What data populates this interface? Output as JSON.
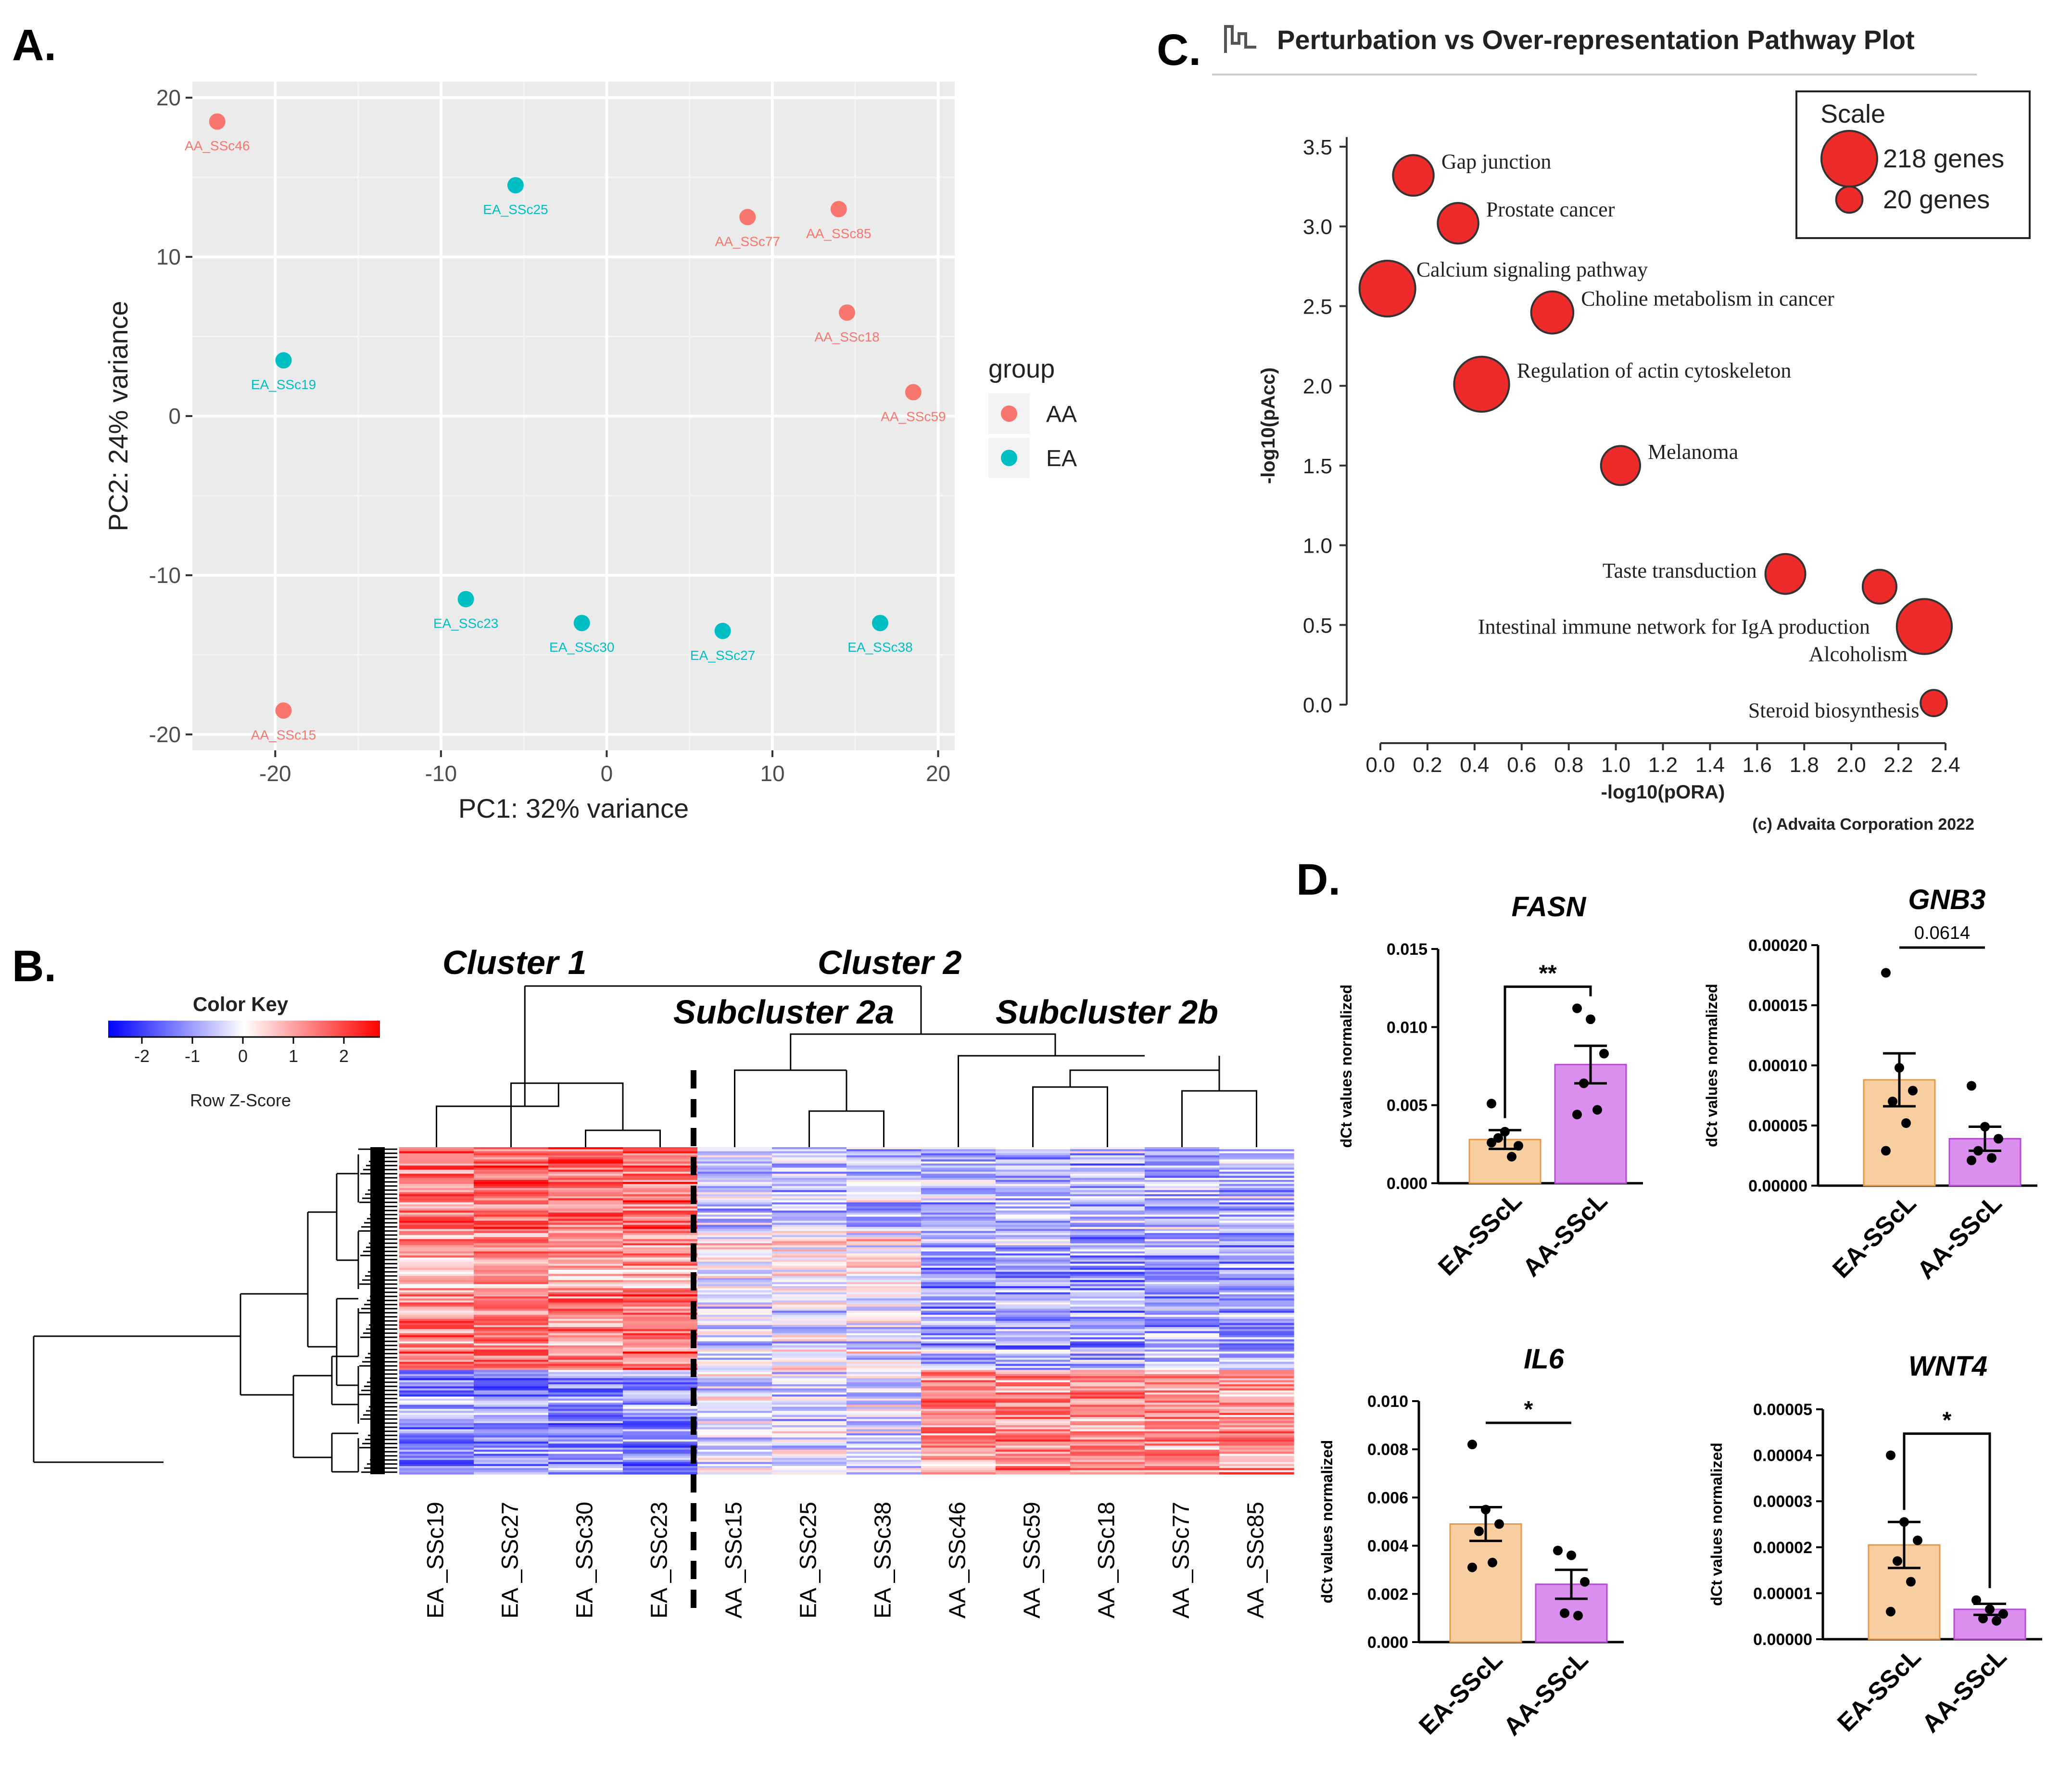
{
  "panels": {
    "a": {
      "label": "A.",
      "chart_data": {
        "type": "scatter",
        "xlabel": "PC1: 32% variance",
        "ylabel": "PC2: 24% variance",
        "xlim": [
          -25,
          21
        ],
        "ylim": [
          -21,
          21
        ],
        "xticks": [
          -20,
          -10,
          0,
          10,
          20
        ],
        "xtick_labels": [
          "-20",
          "-10",
          "0",
          "10",
          "20"
        ],
        "yticks": [
          -20,
          -10,
          0,
          10,
          20
        ],
        "ytick_labels": [
          "-20",
          "-10",
          "0",
          "10",
          "20"
        ],
        "legend_title": "group",
        "groups": [
          {
            "name": "AA",
            "color": "#F8766D"
          },
          {
            "name": "EA",
            "color": "#00BFC4"
          }
        ],
        "points": [
          {
            "label": "AA_SSc46",
            "group": "AA",
            "x": -23.5,
            "y": 18.5
          },
          {
            "label": "EA_SSc25",
            "group": "EA",
            "x": -5.5,
            "y": 14.5
          },
          {
            "label": "AA_SSc77",
            "group": "AA",
            "x": 8.5,
            "y": 12.5
          },
          {
            "label": "AA_SSc85",
            "group": "AA",
            "x": 14,
            "y": 13
          },
          {
            "label": "AA_SSc18",
            "group": "AA",
            "x": 14.5,
            "y": 6.5
          },
          {
            "label": "EA_SSc19",
            "group": "EA",
            "x": -19.5,
            "y": 3.5
          },
          {
            "label": "AA_SSc59",
            "group": "AA",
            "x": 18.5,
            "y": 1.5
          },
          {
            "label": "EA_SSc23",
            "group": "EA",
            "x": -8.5,
            "y": -11.5
          },
          {
            "label": "EA_SSc30",
            "group": "EA",
            "x": -1.5,
            "y": -13
          },
          {
            "label": "EA_SSc27",
            "group": "EA",
            "x": 7,
            "y": -13.5
          },
          {
            "label": "EA_SSc38",
            "group": "EA",
            "x": 16.5,
            "y": -13
          },
          {
            "label": "AA_SSc15",
            "group": "AA",
            "x": -19.5,
            "y": -18.5
          }
        ]
      }
    },
    "b": {
      "label": "B.",
      "chart_data": {
        "type": "heatmap",
        "color_key_title": "Color Key",
        "color_key_xlabel": "Row Z-Score",
        "color_key_ticks": [
          "-2",
          "-1",
          "0",
          "1",
          "2"
        ],
        "colors": {
          "low": "#0000FF",
          "mid": "#FFFFFF",
          "high": "#FF0000"
        },
        "cluster_labels": [
          "Cluster 1",
          "Cluster 2",
          "Subcluster 2a",
          "Subcluster 2b"
        ],
        "columns": [
          "EA _SSc19",
          "EA _SSc27",
          "EA _SSc30",
          "EA _SSc23",
          "AA _SSc15",
          "EA _SSc25",
          "EA _SSc38",
          "AA _SSc46",
          "AA _SSc59",
          "AA _SSc18",
          "AA _SSc77",
          "AA _SSc85"
        ]
      }
    },
    "c": {
      "label": "C.",
      "chart_data": {
        "type": "scatter",
        "title": "Perturbation vs Over-representation Pathway Plot",
        "xlabel": "-log10(pORA)",
        "ylabel": "-log10(pAcc)",
        "xlim": [
          0,
          2.4
        ],
        "ylim": [
          0,
          3.5
        ],
        "xtick_labels": [
          "0.0",
          "0.2",
          "0.4",
          "0.6",
          "0.8",
          "1.0",
          "1.2",
          "1.4",
          "1.6",
          "1.8",
          "2.0",
          "2.2",
          "2.4"
        ],
        "ytick_labels": [
          "0.0",
          "0.5",
          "1.0",
          "1.5",
          "2.0",
          "2.5",
          "3.0",
          "3.5"
        ],
        "point_color": "#EE2B2B",
        "scale_title": "Scale",
        "scale_entries": [
          {
            "label": "218 genes",
            "genes": 218
          },
          {
            "label": "20 genes",
            "genes": 20
          }
        ],
        "copyright": "(c) Advaita Corporation 2022",
        "points": [
          {
            "name": "Gap junction",
            "x": 0.14,
            "y": 3.32,
            "genes": 90,
            "label_side": "right"
          },
          {
            "name": "Prostate cancer",
            "x": 0.33,
            "y": 3.02,
            "genes": 90,
            "label_side": "right"
          },
          {
            "name": "Calcium signaling pathway",
            "x": 0.03,
            "y": 2.61,
            "genes": 218,
            "label_side": "right"
          },
          {
            "name": "Choline metabolism in cancer",
            "x": 0.73,
            "y": 2.46,
            "genes": 100,
            "label_side": "right"
          },
          {
            "name": "Regulation of actin cytoskeleton",
            "x": 0.43,
            "y": 2.01,
            "genes": 210,
            "label_side": "right"
          },
          {
            "name": "Melanoma",
            "x": 1.02,
            "y": 1.5,
            "genes": 80,
            "label_side": "right"
          },
          {
            "name": "Taste transduction",
            "x": 1.72,
            "y": 0.82,
            "genes": 85,
            "label_side": "left"
          },
          {
            "name": "Intestinal immune network for IgA production",
            "x": 2.12,
            "y": 0.74,
            "genes": 50,
            "label_side": "below-left"
          },
          {
            "name": "Alcoholism",
            "x": 2.31,
            "y": 0.49,
            "genes": 210,
            "label_side": "below-left"
          },
          {
            "name": "Steroid biosynthesis",
            "x": 2.35,
            "y": 0.01,
            "genes": 20,
            "label_side": "left"
          }
        ]
      }
    },
    "d": {
      "label": "D.",
      "chart_data": [
        {
          "type": "bar",
          "gene": "FASN",
          "ylabel": "dCt values normalized",
          "categories": [
            "EA-SScL",
            "AA-SScL"
          ],
          "ylim": [
            0,
            0.015
          ],
          "ytick_labels": [
            "0.000",
            "0.005",
            "0.010",
            "0.015"
          ],
          "means": [
            0.0028,
            0.0076
          ],
          "sem": [
            0.0006,
            0.0012
          ],
          "points": [
            [
              0.0051,
              0.0033,
              0.0024,
              0.0029,
              0.0017,
              0.0026
            ],
            [
              0.0112,
              0.0105,
              0.0083,
              0.0064,
              0.0047,
              0.0044
            ]
          ],
          "significance": "**"
        },
        {
          "type": "bar",
          "gene": "GNB3",
          "ylabel": "dCt values normalized",
          "categories": [
            "EA-SScL",
            "AA-SScL"
          ],
          "ylim": [
            0,
            0.0002
          ],
          "ytick_labels": [
            "0.00000",
            "0.00005",
            "0.00010",
            "0.00015",
            "0.00020"
          ],
          "means": [
            8.8e-05,
            3.9e-05
          ],
          "sem": [
            2.2e-05,
            1e-05
          ],
          "points": [
            [
              0.000177,
              9.8e-05,
              7.9e-05,
              7e-05,
              5.2e-05,
              2.9e-05
            ],
            [
              8.3e-05,
              4.9e-05,
              3.9e-05,
              2.9e-05,
              2.3e-05,
              2.1e-05
            ]
          ],
          "significance": "0.0614"
        },
        {
          "type": "bar",
          "gene": "IL6",
          "ylabel": "dCt values normalized",
          "categories": [
            "EA-SScL",
            "AA-SScL"
          ],
          "ylim": [
            0,
            0.01
          ],
          "ytick_labels": [
            "0.000",
            "0.002",
            "0.004",
            "0.006",
            "0.008",
            "0.010"
          ],
          "means": [
            0.0049,
            0.0024
          ],
          "sem": [
            0.0007,
            0.0006
          ],
          "points": [
            [
              0.0082,
              0.0055,
              0.0049,
              0.0046,
              0.0033,
              0.0031
            ],
            [
              0.0038,
              0.0036,
              0.0025,
              0.0012,
              0.0011
            ]
          ],
          "significance": "*"
        },
        {
          "type": "bar",
          "gene": "WNT4",
          "ylabel": "dCt values normalized",
          "categories": [
            "EA-SScL",
            "AA-SScL"
          ],
          "ylim": [
            0,
            5e-05
          ],
          "ytick_labels": [
            "0.00000",
            "0.00001",
            "0.00002",
            "0.00003",
            "0.00004",
            "0.00005"
          ],
          "means": [
            2.05e-05,
            6.5e-06
          ],
          "sem": [
            5e-06,
            1.2e-06
          ],
          "points": [
            [
              4e-05,
              2.55e-05,
              2.15e-05,
              1.7e-05,
              1.25e-05,
              6e-06
            ],
            [
              8.5e-06,
              6.5e-06,
              5.5e-06,
              4.5e-06,
              4e-06
            ]
          ],
          "significance": "*"
        }
      ]
    }
  }
}
